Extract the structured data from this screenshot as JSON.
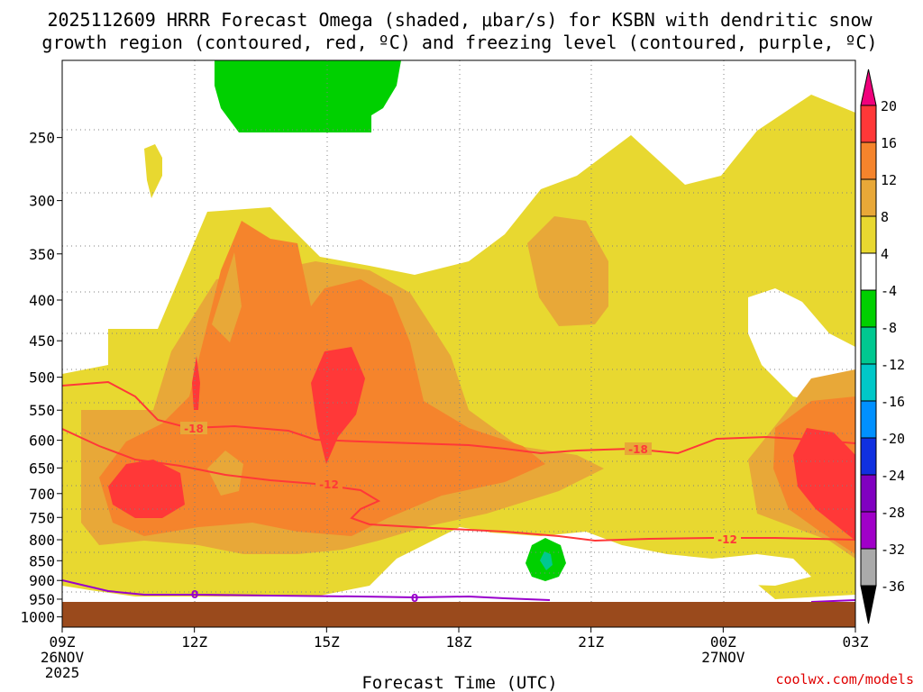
{
  "chart_data": {
    "type": "contour",
    "title_line1": "2025112609 HRRR Forecast Omega (shaded, μbar/s) for KSBN with dendritic snow",
    "title_line2": "growth region (contoured, red, ºC) and freezing level (contoured, purple, ºC)",
    "xlabel": "Forecast Time (UTC)",
    "x_ticks": [
      {
        "hour": 0,
        "line1": "09Z",
        "line2": "26NOV",
        "line3": "2025"
      },
      {
        "hour": 3,
        "line1": "12Z",
        "line2": "",
        "line3": ""
      },
      {
        "hour": 6,
        "line1": "15Z",
        "line2": "",
        "line3": ""
      },
      {
        "hour": 9,
        "line1": "18Z",
        "line2": "",
        "line3": ""
      },
      {
        "hour": 12,
        "line1": "21Z",
        "line2": "",
        "line3": ""
      },
      {
        "hour": 15,
        "line1": "00Z",
        "line2": "27NOV",
        "line3": ""
      },
      {
        "hour": 18,
        "line1": "03Z",
        "line2": "",
        "line3": ""
      }
    ],
    "y_ticks": [
      "250",
      "300",
      "350",
      "400",
      "450",
      "500",
      "550",
      "600",
      "650",
      "700",
      "750",
      "800",
      "850",
      "900",
      "950",
      "1000"
    ],
    "ylim_hpa": [
      200,
      1030
    ],
    "xlim_hours": [
      0,
      18
    ],
    "colorbar": {
      "levels": [
        "20",
        "16",
        "12",
        "8",
        "4",
        "-4",
        "-8",
        "-12",
        "-16",
        "-20",
        "-24",
        "-28",
        "-32",
        "-36"
      ],
      "colors": [
        "#f0007c",
        "#ff3838",
        "#f5842c",
        "#e8a838",
        "#e8d830",
        "#ffffff",
        "#00d000",
        "#00c890",
        "#00c8c8",
        "#0090ff",
        "#1030e0",
        "#8000c0",
        "#a000c8",
        "#aaaaaa",
        "#000000"
      ]
    },
    "contours": [
      {
        "name": "dendritic-growth-top",
        "label": "-18",
        "color": "#ff3838"
      },
      {
        "name": "dendritic-growth-bottom",
        "label": "-12",
        "color": "#ff3838"
      },
      {
        "name": "freezing-level",
        "label": "0",
        "color": "#9900cc"
      }
    ],
    "surface_color": "#9a4a1c"
  },
  "credit": "coolwx.com/models"
}
